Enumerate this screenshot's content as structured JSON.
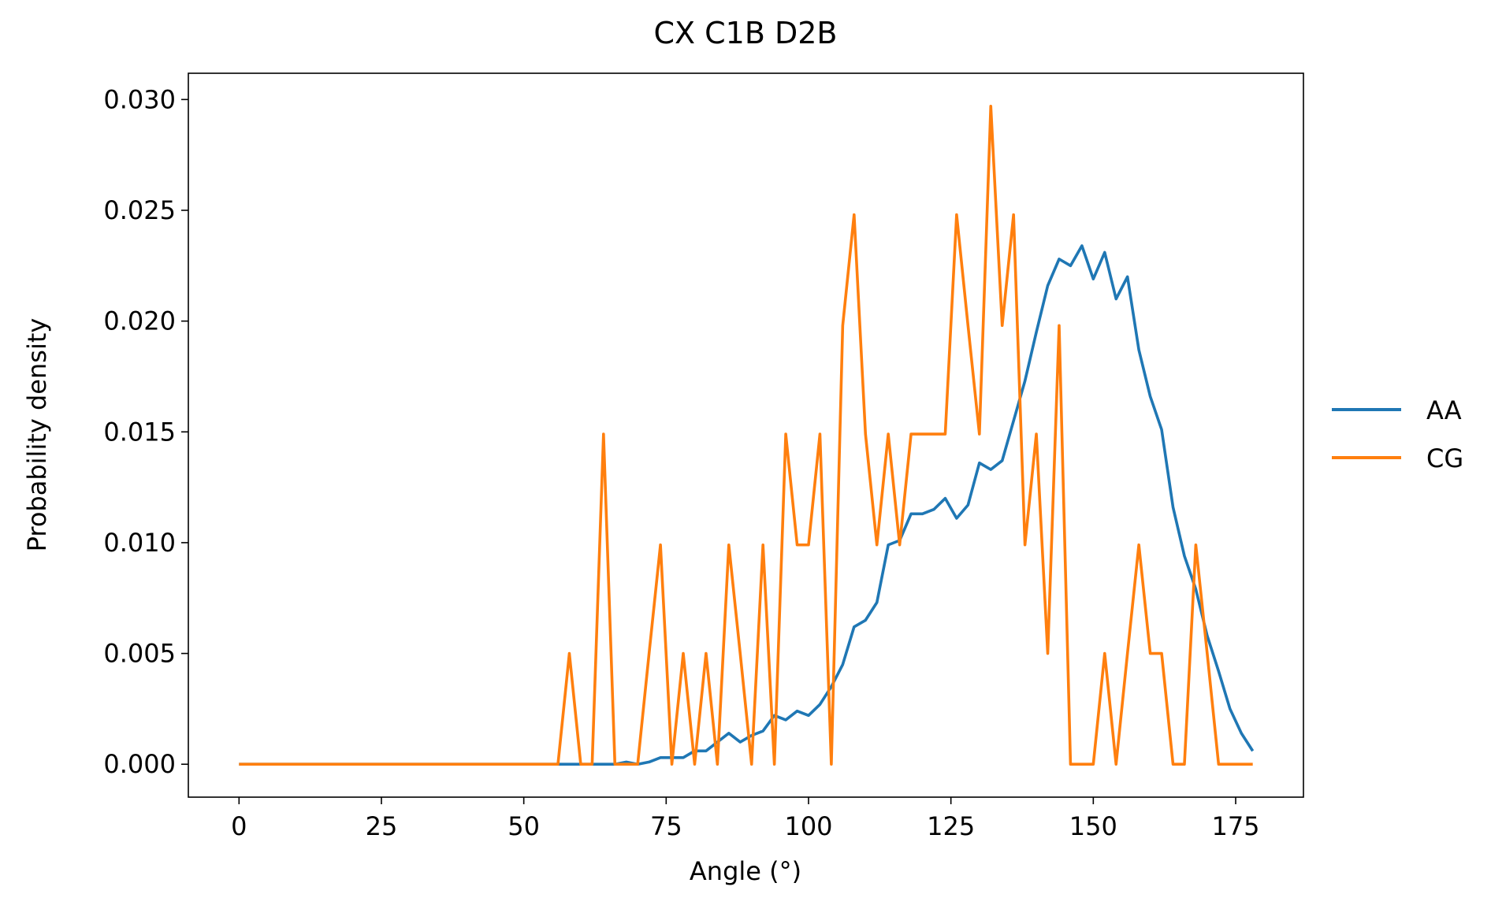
{
  "chart_data": {
    "type": "line",
    "title": "CX C1B D2B",
    "xlabel": "Angle (°)",
    "ylabel": "Probability density",
    "x": [
      0,
      2,
      4,
      6,
      8,
      10,
      12,
      14,
      16,
      18,
      20,
      22,
      24,
      26,
      28,
      30,
      32,
      34,
      36,
      38,
      40,
      42,
      44,
      46,
      48,
      50,
      52,
      54,
      56,
      58,
      60,
      62,
      64,
      66,
      68,
      70,
      72,
      74,
      76,
      78,
      80,
      82,
      84,
      86,
      88,
      90,
      92,
      94,
      96,
      98,
      100,
      102,
      104,
      106,
      108,
      110,
      112,
      114,
      116,
      118,
      120,
      122,
      124,
      126,
      128,
      130,
      132,
      134,
      136,
      138,
      140,
      142,
      144,
      146,
      148,
      150,
      152,
      154,
      156,
      158,
      160,
      162,
      164,
      166,
      168,
      170,
      172,
      174,
      176,
      178
    ],
    "series": [
      {
        "name": "AA",
        "color": "#1f77b4",
        "values": [
          0,
          0,
          0,
          0,
          0,
          0,
          0,
          0,
          0,
          0,
          0,
          0,
          0,
          0,
          0,
          0,
          0,
          0,
          0,
          0,
          0,
          0,
          0,
          0,
          0,
          0,
          0,
          0,
          0,
          0,
          0,
          0,
          0,
          0,
          0.0001,
          0,
          0.0001,
          0.0003,
          0.0003,
          0.0003,
          0.0006,
          0.0006,
          0.001,
          0.0014,
          0.001,
          0.0013,
          0.0015,
          0.0022,
          0.002,
          0.0024,
          0.0022,
          0.0027,
          0.0035,
          0.0045,
          0.0062,
          0.0065,
          0.0073,
          0.0099,
          0.0101,
          0.0113,
          0.0113,
          0.0115,
          0.012,
          0.0111,
          0.0117,
          0.0136,
          0.0133,
          0.0137,
          0.0155,
          0.0173,
          0.0195,
          0.0216,
          0.0228,
          0.0225,
          0.0234,
          0.0219,
          0.0231,
          0.021,
          0.022,
          0.0187,
          0.0166,
          0.0151,
          0.0116,
          0.0094,
          0.0079,
          0.0058,
          0.0042,
          0.0025,
          0.0014,
          0.0006
        ]
      },
      {
        "name": "CG",
        "color": "#ff7f0e",
        "values": [
          0,
          0,
          0,
          0,
          0,
          0,
          0,
          0,
          0,
          0,
          0,
          0,
          0,
          0,
          0,
          0,
          0,
          0,
          0,
          0,
          0,
          0,
          0,
          0,
          0,
          0,
          0,
          0,
          0,
          0.005,
          0,
          0,
          0.0149,
          0,
          0,
          0,
          0.005,
          0.0099,
          0,
          0.005,
          0,
          0.005,
          0,
          0.0099,
          0.005,
          0,
          0.0099,
          0,
          0.0149,
          0.0099,
          0.0099,
          0.0149,
          0,
          0.0198,
          0.0248,
          0.0149,
          0.0099,
          0.0149,
          0.0099,
          0.0149,
          0.0149,
          0.0149,
          0.0149,
          0.0248,
          0.0198,
          0.0149,
          0.0297,
          0.0198,
          0.0248,
          0.0099,
          0.0149,
          0.005,
          0.0198,
          0,
          0,
          0,
          0.005,
          0,
          0.005,
          0.0099,
          0.005,
          0.005,
          0,
          0,
          0.0099,
          0.005,
          0,
          0,
          0,
          0
        ]
      }
    ],
    "xlim": [
      -8.9,
      186.9
    ],
    "xticks": [
      0,
      25,
      50,
      75,
      100,
      125,
      150,
      175
    ],
    "ylim": [
      -0.001485,
      0.031185
    ],
    "yticks": [
      {
        "value": 0,
        "label": "0.000"
      },
      {
        "value": 0.005,
        "label": "0.005"
      },
      {
        "value": 0.01,
        "label": "0.010"
      },
      {
        "value": 0.015,
        "label": "0.015"
      },
      {
        "value": 0.02,
        "label": "0.020"
      },
      {
        "value": 0.025,
        "label": "0.025"
      },
      {
        "value": 0.03,
        "label": "0.030"
      }
    ],
    "grid": false,
    "legend": "outside right"
  }
}
